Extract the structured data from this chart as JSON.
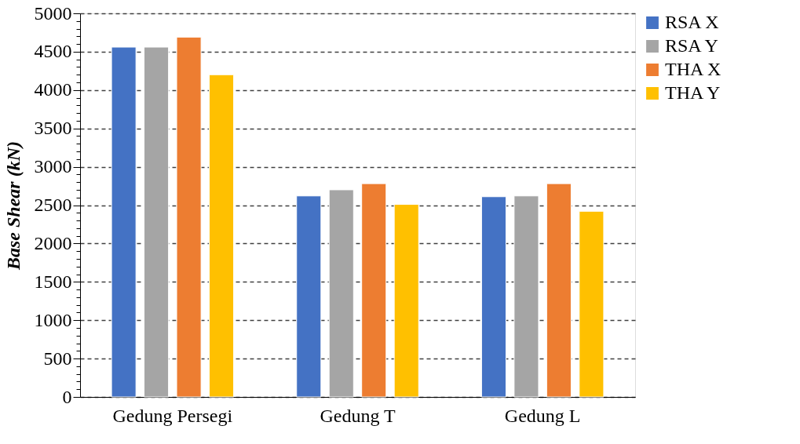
{
  "chart_data": {
    "type": "bar",
    "ylabel": "Base Shear (kN)",
    "categories": [
      "Gedung Persegi",
      "Gedung T",
      "Gedung L"
    ],
    "series": [
      {
        "name": "RSA X",
        "color": "#4472c4",
        "values": [
          4560,
          2620,
          2610
        ]
      },
      {
        "name": "RSA Y",
        "color": "#a5a5a5",
        "values": [
          4560,
          2700,
          2620
        ]
      },
      {
        "name": "THA X",
        "color": "#ed7d31",
        "values": [
          4690,
          2780,
          2780
        ]
      },
      {
        "name": "THA Y",
        "color": "#ffc000",
        "values": [
          4200,
          2510,
          2420
        ]
      }
    ],
    "ylim": [
      0,
      5000
    ],
    "yticks": [
      0,
      {
        "value": 100,
        "label": null
      },
      {
        "value": 200,
        "label": null
      },
      {
        "value": 300,
        "label": null
      },
      {
        "value": 400,
        "label": null
      },
      500,
      {
        "value": 600,
        "label": null
      },
      {
        "value": 700,
        "label": null
      },
      {
        "value": 800,
        "label": null
      },
      {
        "value": 900,
        "label": null
      },
      1000,
      {
        "value": 1100,
        "label": null
      },
      {
        "value": 1200,
        "label": null
      },
      {
        "value": 1300,
        "label": null
      },
      {
        "value": 1400,
        "label": null
      },
      1500,
      {
        "value": 1600,
        "label": null
      },
      {
        "value": 1700,
        "label": null
      },
      {
        "value": 1800,
        "label": null
      },
      {
        "value": 1900,
        "label": null
      },
      2000,
      {
        "value": 2100,
        "label": null
      },
      {
        "value": 2200,
        "label": null
      },
      {
        "value": 2300,
        "label": null
      },
      {
        "value": 2400,
        "label": null
      },
      2500,
      {
        "value": 2600,
        "label": null
      },
      {
        "value": 2700,
        "label": null
      },
      {
        "value": 2800,
        "label": null
      },
      {
        "value": 2900,
        "label": null
      },
      3000,
      {
        "value": 3100,
        "label": null
      },
      {
        "value": 3200,
        "label": null
      },
      {
        "value": 3300,
        "label": null
      },
      {
        "value": 3400,
        "label": null
      },
      3500,
      {
        "value": 3600,
        "label": null
      },
      {
        "value": 3700,
        "label": null
      },
      {
        "value": 3800,
        "label": null
      },
      {
        "value": 3900,
        "label": null
      },
      4000,
      {
        "value": 4100,
        "label": null
      },
      {
        "value": 4200,
        "label": null
      },
      {
        "value": 4300,
        "label": null
      },
      {
        "value": 4400,
        "label": null
      },
      4500,
      {
        "value": 4600,
        "label": null
      },
      {
        "value": 4700,
        "label": null
      },
      {
        "value": 4800,
        "label": null
      },
      {
        "value": 4900,
        "label": null
      },
      5000
    ],
    "grid": "y",
    "legend": "right"
  }
}
